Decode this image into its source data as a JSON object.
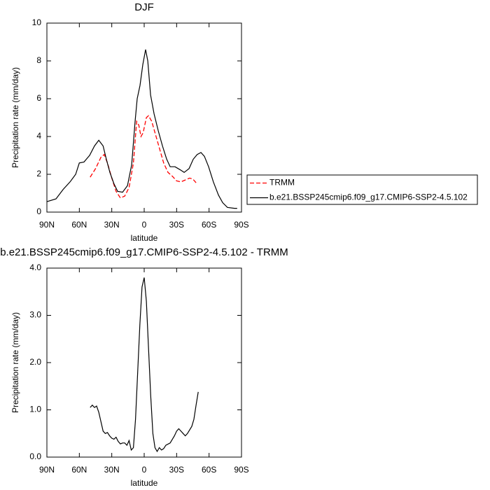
{
  "chart_data": [
    {
      "type": "line",
      "title": "DJF",
      "x_label": "latitude",
      "y_label": "Precipitation rate (mm/day)",
      "xlim": [
        90,
        -90
      ],
      "xticks": [
        {
          "value": 90,
          "label": "90N"
        },
        {
          "value": 60,
          "label": "60N"
        },
        {
          "value": 30,
          "label": "30N"
        },
        {
          "value": 0,
          "label": "0"
        },
        {
          "value": -30,
          "label": "30S"
        },
        {
          "value": -60,
          "label": "60S"
        },
        {
          "value": -90,
          "label": "90S"
        }
      ],
      "ylim": [
        0,
        10
      ],
      "yticks": [
        0,
        2,
        4,
        6,
        8,
        10
      ],
      "legend": "right",
      "series": [
        {
          "name": "TRMM",
          "color": "#ff0000",
          "dash": true,
          "x": [
            50,
            45,
            40,
            37,
            34,
            30,
            26,
            22,
            18,
            14,
            10,
            7,
            5,
            3,
            1,
            -2,
            -4,
            -7,
            -10,
            -14,
            -18,
            -22,
            -26,
            -30,
            -34,
            -38,
            -42,
            -45,
            -48
          ],
          "values": [
            1.85,
            2.3,
            2.9,
            3.05,
            2.6,
            1.8,
            1.1,
            0.75,
            0.85,
            1.3,
            2.6,
            4.8,
            4.6,
            4.0,
            4.2,
            5.0,
            5.1,
            4.8,
            4.2,
            3.4,
            2.6,
            2.1,
            1.9,
            1.65,
            1.6,
            1.7,
            1.8,
            1.75,
            1.55
          ]
        },
        {
          "name": "b.e21.BSSP245cmip6.f09_g17.CMIP6-SSP2-4.5.102",
          "color": "#000000",
          "dash": false,
          "x": [
            90,
            81.6,
            75,
            68.6,
            63.4,
            60,
            55.7,
            50.5,
            46,
            42,
            38,
            35,
            31.7,
            28,
            24.6,
            20,
            15.5,
            11.6,
            8.4,
            6.5,
            3.9,
            1.3,
            -1.3,
            -3.3,
            -5.9,
            -9.1,
            -13,
            -16.9,
            -20.8,
            -24,
            -28.5,
            -33,
            -37,
            -41.5,
            -45.4,
            -49,
            -52.5,
            -55.7,
            -59.6,
            -64,
            -68.7,
            -72.6,
            -77,
            -83.5,
            -86
          ],
          "values": [
            0.55,
            0.7,
            1.2,
            1.6,
            2.0,
            2.6,
            2.65,
            3.0,
            3.5,
            3.8,
            3.5,
            2.8,
            2.1,
            1.5,
            1.1,
            1.05,
            1.4,
            2.5,
            4.8,
            6.0,
            6.7,
            7.8,
            8.6,
            8.0,
            6.2,
            5.2,
            4.3,
            3.5,
            2.8,
            2.4,
            2.4,
            2.25,
            2.1,
            2.3,
            2.8,
            3.05,
            3.15,
            2.95,
            2.4,
            1.6,
            0.9,
            0.5,
            0.25,
            0.2,
            0.2
          ]
        }
      ]
    },
    {
      "type": "line",
      "title": "b.e21.BSSP245cmip6.f09_g17.CMIP6-SSP2-4.5.102 - TRMM",
      "x_label": "latitude",
      "y_label": "Precipitation rate (mm/day)",
      "xlim": [
        90,
        -90
      ],
      "xticks": [
        {
          "value": 90,
          "label": "90N"
        },
        {
          "value": 60,
          "label": "60N"
        },
        {
          "value": 30,
          "label": "30N"
        },
        {
          "value": 0,
          "label": "0"
        },
        {
          "value": -30,
          "label": "30S"
        },
        {
          "value": -60,
          "label": "60S"
        },
        {
          "value": -90,
          "label": "90S"
        }
      ],
      "ylim": [
        0,
        4
      ],
      "yticks": [
        {
          "value": 0,
          "label": "0.0"
        },
        {
          "value": 1,
          "label": "1.0"
        },
        {
          "value": 2,
          "label": "2.0"
        },
        {
          "value": 3,
          "label": "3.0"
        },
        {
          "value": 4,
          "label": "4.0"
        }
      ],
      "color": "#000000",
      "x": [
        50,
        48,
        46,
        44,
        42,
        40,
        38,
        36,
        34,
        32,
        30,
        28,
        26,
        24,
        22,
        20,
        18,
        16,
        14,
        12,
        10,
        8,
        6,
        4,
        2,
        0,
        -2,
        -4,
        -6,
        -8,
        -10,
        -12,
        -14,
        -16,
        -18,
        -20,
        -24,
        -28,
        -30,
        -32,
        -34,
        -36,
        -38,
        -40,
        -44,
        -46,
        -48,
        -50
      ],
      "values": [
        1.05,
        1.1,
        1.05,
        1.08,
        0.95,
        0.75,
        0.55,
        0.5,
        0.52,
        0.45,
        0.4,
        0.38,
        0.42,
        0.33,
        0.28,
        0.3,
        0.3,
        0.25,
        0.35,
        0.15,
        0.2,
        0.8,
        1.8,
        2.8,
        3.6,
        3.8,
        3.3,
        2.3,
        1.3,
        0.5,
        0.2,
        0.12,
        0.2,
        0.15,
        0.18,
        0.25,
        0.3,
        0.45,
        0.55,
        0.6,
        0.55,
        0.5,
        0.45,
        0.5,
        0.65,
        0.8,
        1.1,
        1.38
      ]
    }
  ]
}
